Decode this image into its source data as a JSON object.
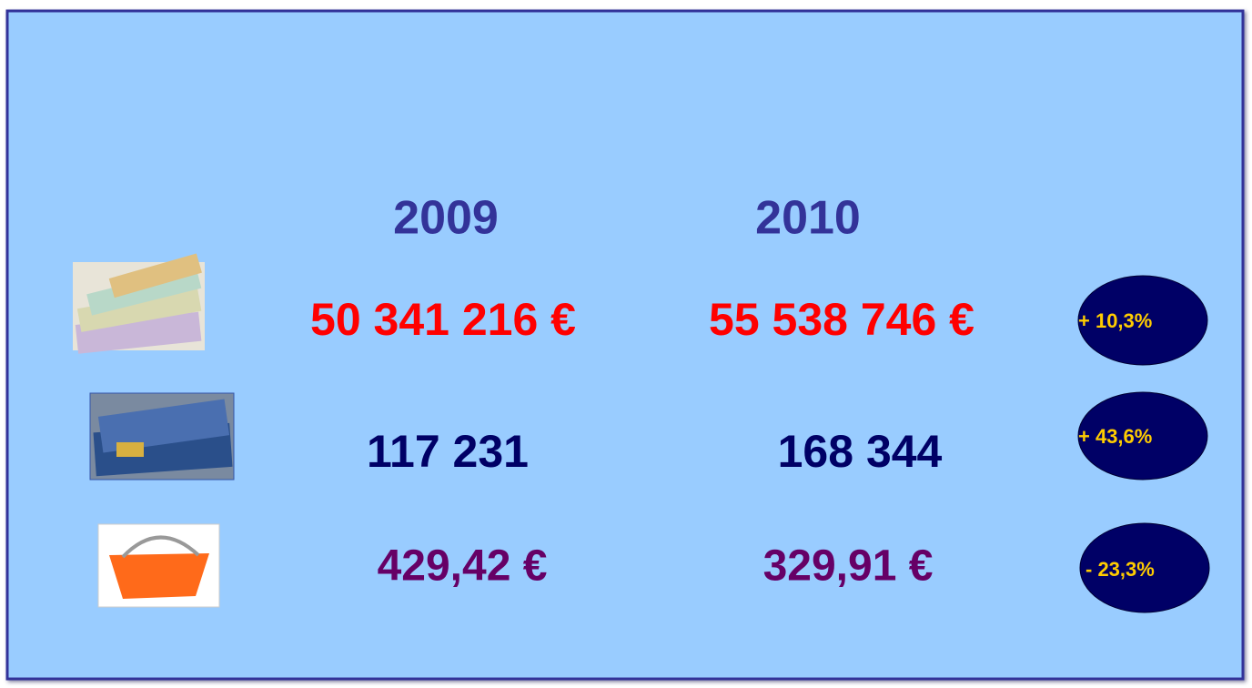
{
  "header": {
    "years": [
      "2009",
      "2010"
    ]
  },
  "rows": [
    {
      "values": [
        "50 341 216 €",
        "55 538 746 €"
      ],
      "change": "+ 10,3%"
    },
    {
      "values": [
        "117 231",
        "168 344"
      ],
      "change": "+ 43,6%"
    },
    {
      "values": [
        "429,42 €",
        "329,91 €"
      ],
      "change": "- 23,3%"
    }
  ]
}
